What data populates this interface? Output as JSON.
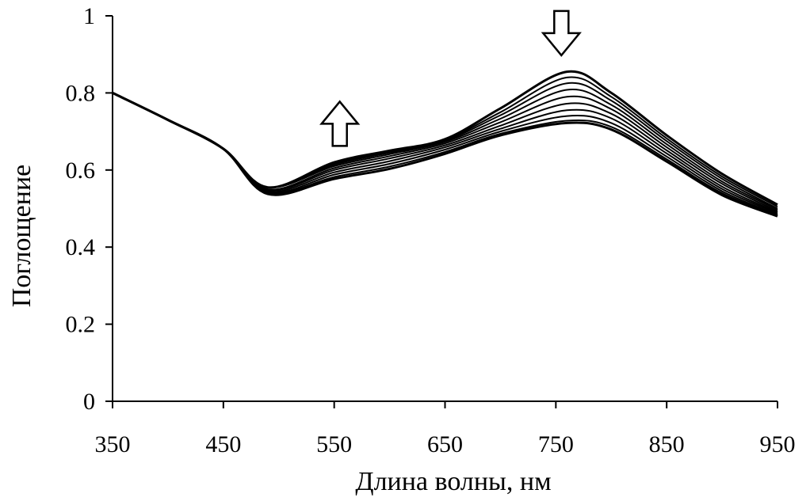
{
  "chart_data": {
    "type": "line",
    "xlabel": "Длина волны, нм",
    "ylabel": "Поглощение",
    "xlim": [
      350,
      950
    ],
    "ylim": [
      0,
      1
    ],
    "x_ticks": [
      "350",
      "450",
      "550",
      "650",
      "750",
      "850",
      "950"
    ],
    "y_ticks": [
      "0",
      "0.2",
      "0.4",
      "0.6",
      "0.8",
      "1"
    ],
    "grid": false,
    "legend": "none",
    "line_color": "#000000",
    "x": [
      350,
      400,
      450,
      490,
      550,
      600,
      650,
      700,
      760,
      800,
      850,
      900,
      950
    ],
    "series": [
      {
        "values": [
          0.8,
          0.73,
          0.655,
          0.555,
          0.62,
          0.65,
          0.68,
          0.76,
          0.855,
          0.8,
          0.69,
          0.59,
          0.51
        ]
      },
      {
        "values": [
          0.8,
          0.73,
          0.655,
          0.555,
          0.617,
          0.648,
          0.678,
          0.75,
          0.84,
          0.79,
          0.682,
          0.583,
          0.505
        ]
      },
      {
        "values": [
          0.8,
          0.73,
          0.655,
          0.555,
          0.614,
          0.645,
          0.676,
          0.742,
          0.825,
          0.78,
          0.675,
          0.577,
          0.5
        ]
      },
      {
        "values": [
          0.8,
          0.73,
          0.655,
          0.555,
          0.61,
          0.641,
          0.673,
          0.733,
          0.808,
          0.769,
          0.667,
          0.57,
          0.497
        ]
      },
      {
        "values": [
          0.8,
          0.73,
          0.655,
          0.55,
          0.605,
          0.636,
          0.669,
          0.724,
          0.79,
          0.758,
          0.659,
          0.564,
          0.493
        ]
      },
      {
        "values": [
          0.8,
          0.73,
          0.655,
          0.548,
          0.6,
          0.63,
          0.664,
          0.715,
          0.772,
          0.746,
          0.651,
          0.557,
          0.49
        ]
      },
      {
        "values": [
          0.8,
          0.73,
          0.655,
          0.545,
          0.594,
          0.623,
          0.659,
          0.707,
          0.755,
          0.734,
          0.643,
          0.551,
          0.487
        ]
      },
      {
        "values": [
          0.8,
          0.73,
          0.655,
          0.542,
          0.588,
          0.616,
          0.653,
          0.7,
          0.74,
          0.722,
          0.635,
          0.545,
          0.484
        ]
      },
      {
        "values": [
          0.8,
          0.73,
          0.655,
          0.54,
          0.582,
          0.609,
          0.647,
          0.694,
          0.728,
          0.712,
          0.628,
          0.54,
          0.482
        ]
      },
      {
        "values": [
          0.8,
          0.73,
          0.655,
          0.538,
          0.577,
          0.603,
          0.642,
          0.69,
          0.722,
          0.705,
          0.622,
          0.535,
          0.48
        ]
      }
    ],
    "annotations": [
      {
        "type": "arrow",
        "direction": "up",
        "x": 555,
        "y": 0.72
      },
      {
        "type": "arrow",
        "direction": "down",
        "x": 755,
        "y": 0.955
      }
    ]
  }
}
